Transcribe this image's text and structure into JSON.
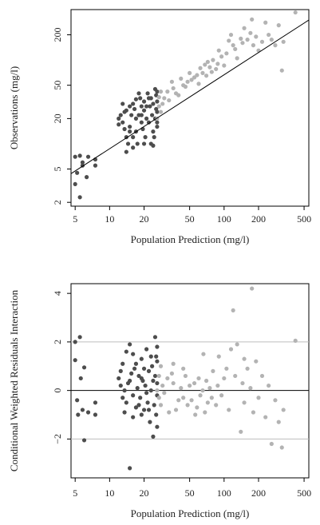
{
  "colors": {
    "dark_points": "#4d4d4d",
    "light_points": "#b3b3b3",
    "reference_line": "#000000",
    "guide_line": "#bdbdbd"
  },
  "chart_data": [
    {
      "type": "scatter",
      "title": "",
      "xlabel": "Population Prediction (mg/l)",
      "ylabel": "Observations (mg/l)",
      "x_scale": "log",
      "y_scale": "log",
      "xlim": [
        4.6,
        550
      ],
      "ylim": [
        1.8,
        400
      ],
      "x_ticks": [
        5,
        10,
        20,
        50,
        100,
        200,
        500
      ],
      "x_tick_labels": [
        "5",
        "10",
        "20",
        "50",
        "100",
        "200",
        "500"
      ],
      "y_ticks": [
        2,
        5,
        20,
        50,
        200
      ],
      "y_tick_labels": [
        "2",
        "5",
        "20",
        "50",
        "200"
      ],
      "grid": false,
      "legend": "none",
      "reference_line": {
        "type": "identity",
        "from": [
          4.6,
          4.4
        ],
        "to": [
          550,
          300
        ]
      },
      "series": [
        {
          "color": "#4d4d4d",
          "points": [
            [
              5,
              3.3
            ],
            [
              5,
              7
            ],
            [
              5.2,
              4.5
            ],
            [
              5.5,
              2.3
            ],
            [
              5.5,
              7.2
            ],
            [
              5.8,
              6
            ],
            [
              5.8,
              5.5
            ],
            [
              6.3,
              4
            ],
            [
              6.5,
              7
            ],
            [
              7.5,
              6.5
            ],
            [
              7.5,
              5.5
            ],
            [
              12,
              20
            ],
            [
              12.5,
              22
            ],
            [
              13,
              30
            ],
            [
              13,
              18
            ],
            [
              13.5,
              15
            ],
            [
              14,
              12
            ],
            [
              14,
              8
            ],
            [
              14,
              25
            ],
            [
              14.5,
              10
            ],
            [
              15,
              28
            ],
            [
              15,
              16
            ],
            [
              15.5,
              22
            ],
            [
              16,
              9
            ],
            [
              16,
              12
            ],
            [
              16,
              30
            ],
            [
              16.5,
              26
            ],
            [
              17,
              20
            ],
            [
              17,
              14
            ],
            [
              17.5,
              10
            ],
            [
              18,
              22
            ],
            [
              18.5,
              35
            ],
            [
              19,
              28
            ],
            [
              19,
              18
            ],
            [
              19.5,
              15
            ],
            [
              20,
              25
            ],
            [
              20,
              32
            ],
            [
              20.5,
              12
            ],
            [
              21,
              20
            ],
            [
              21.5,
              40
            ],
            [
              22,
              18
            ],
            [
              22.5,
              28
            ],
            [
              23,
              10
            ],
            [
              23,
              35
            ],
            [
              23.5,
              22
            ],
            [
              24,
              14
            ],
            [
              24,
              30
            ],
            [
              24.5,
              12
            ],
            [
              25,
              20
            ],
            [
              25,
              45
            ],
            [
              25.5,
              26
            ],
            [
              25.5,
              38
            ],
            [
              26,
              16
            ],
            [
              26,
              32
            ],
            [
              26,
              24
            ],
            [
              26,
              42
            ],
            [
              26,
              18
            ],
            [
              18,
              40
            ],
            [
              20,
              10
            ],
            [
              21,
              28
            ],
            [
              22,
              35
            ],
            [
              24,
              9.5
            ],
            [
              13.5,
              24
            ],
            [
              15,
              14
            ],
            [
              17,
              34
            ],
            [
              19,
              22
            ],
            [
              12,
              17
            ]
          ]
        },
        {
          "color": "#b3b3b3",
          "points": [
            [
              26,
              20
            ],
            [
              27,
              28
            ],
            [
              27,
              36
            ],
            [
              28,
              24
            ],
            [
              28,
              42
            ],
            [
              29,
              30
            ],
            [
              30,
              35
            ],
            [
              32,
              42
            ],
            [
              33,
              33
            ],
            [
              35,
              55
            ],
            [
              36,
              46
            ],
            [
              38,
              40
            ],
            [
              40,
              38
            ],
            [
              42,
              60
            ],
            [
              44,
              50
            ],
            [
              46,
              48
            ],
            [
              48,
              55
            ],
            [
              50,
              70
            ],
            [
              52,
              58
            ],
            [
              55,
              62
            ],
            [
              58,
              66
            ],
            [
              60,
              52
            ],
            [
              62,
              80
            ],
            [
              65,
              70
            ],
            [
              68,
              88
            ],
            [
              70,
              65
            ],
            [
              72,
              95
            ],
            [
              75,
              82
            ],
            [
              78,
              72
            ],
            [
              80,
              100
            ],
            [
              85,
              78
            ],
            [
              88,
              90
            ],
            [
              90,
              130
            ],
            [
              95,
              110
            ],
            [
              100,
              86
            ],
            [
              105,
              120
            ],
            [
              110,
              170
            ],
            [
              115,
              200
            ],
            [
              120,
              150
            ],
            [
              125,
              135
            ],
            [
              130,
              105
            ],
            [
              140,
              180
            ],
            [
              145,
              160
            ],
            [
              150,
              240
            ],
            [
              160,
              175
            ],
            [
              170,
              210
            ],
            [
              175,
              305
            ],
            [
              180,
              150
            ],
            [
              190,
              190
            ],
            [
              200,
              130
            ],
            [
              215,
              165
            ],
            [
              230,
              280
            ],
            [
              245,
              200
            ],
            [
              260,
              175
            ],
            [
              280,
              150
            ],
            [
              300,
              260
            ],
            [
              320,
              75
            ],
            [
              330,
              165
            ],
            [
              420,
              370
            ]
          ]
        }
      ]
    },
    {
      "type": "scatter",
      "title": "",
      "xlabel": "Population Prediction (mg/l)",
      "ylabel": "Conditional Weighted Residuals Interaction",
      "x_scale": "log",
      "y_scale": "linear",
      "xlim": [
        4.6,
        550
      ],
      "ylim": [
        -3.6,
        4.4
      ],
      "x_ticks": [
        5,
        10,
        20,
        50,
        100,
        200,
        500
      ],
      "x_tick_labels": [
        "5",
        "10",
        "20",
        "50",
        "100",
        "200",
        "500"
      ],
      "y_ticks": [
        -2,
        0,
        2,
        4
      ],
      "y_tick_labels": [
        "−2",
        "0",
        "2",
        "4"
      ],
      "grid": false,
      "legend": "none",
      "horizontal_lines": [
        {
          "y": 0,
          "color": "#000000"
        },
        {
          "y": 2,
          "color": "#bdbdbd"
        },
        {
          "y": -2,
          "color": "#bdbdbd"
        }
      ],
      "series": [
        {
          "color": "#4d4d4d",
          "points": [
            [
              5,
              2.0
            ],
            [
              5,
              1.25
            ],
            [
              5.2,
              -0.4
            ],
            [
              5.3,
              -1.0
            ],
            [
              5.5,
              2.2
            ],
            [
              5.6,
              0.5
            ],
            [
              5.8,
              -0.8
            ],
            [
              6,
              0.95
            ],
            [
              6,
              -2.05
            ],
            [
              6.5,
              -0.9
            ],
            [
              7.5,
              -1.0
            ],
            [
              7.5,
              -0.5
            ],
            [
              12,
              0.5
            ],
            [
              12.5,
              0.2
            ],
            [
              13,
              1.1
            ],
            [
              13,
              -0.3
            ],
            [
              13.5,
              -0.9
            ],
            [
              14,
              -0.5
            ],
            [
              14.5,
              0.3
            ],
            [
              15,
              -3.2
            ],
            [
              15,
              1.9
            ],
            [
              15.5,
              0.7
            ],
            [
              16,
              -0.2
            ],
            [
              16,
              1.5
            ],
            [
              16.5,
              0.9
            ],
            [
              17,
              -0.7
            ],
            [
              17.5,
              0.1
            ],
            [
              18,
              0.6
            ],
            [
              18.5,
              -0.3
            ],
            [
              19,
              1.3
            ],
            [
              19,
              -1.0
            ],
            [
              19.5,
              0.4
            ],
            [
              20,
              -0.8
            ],
            [
              20.5,
              0.2
            ],
            [
              21,
              1.7
            ],
            [
              21.5,
              -0.5
            ],
            [
              22,
              0.8
            ],
            [
              22.5,
              -1.3
            ],
            [
              23,
              0.0
            ],
            [
              23.5,
              1.0
            ],
            [
              24,
              -1.9
            ],
            [
              24,
              0.4
            ],
            [
              24.5,
              -0.6
            ],
            [
              25,
              0.6
            ],
            [
              25,
              2.2
            ],
            [
              25.5,
              1.4
            ],
            [
              25.5,
              -1.0
            ],
            [
              26,
              0.3
            ],
            [
              26,
              1.2
            ],
            [
              26,
              -0.2
            ],
            [
              26,
              1.8
            ],
            [
              26,
              -1.5
            ],
            [
              14,
              1.6
            ],
            [
              18,
              -0.6
            ],
            [
              20,
              0.9
            ],
            [
              22,
              -0.8
            ],
            [
              23,
              1.4
            ],
            [
              12.5,
              0.8
            ],
            [
              16,
              -1.1
            ],
            [
              17,
              1.1
            ],
            [
              21,
              -0.1
            ],
            [
              19,
              0.5
            ],
            [
              13.5,
              0.0
            ],
            [
              15,
              0.4
            ]
          ]
        },
        {
          "color": "#b3b3b3",
          "points": [
            [
              26,
              0.0
            ],
            [
              27,
              0.6
            ],
            [
              27,
              -0.3
            ],
            [
              28,
              1.0
            ],
            [
              28,
              -0.6
            ],
            [
              29,
              0.2
            ],
            [
              30,
              -0.1
            ],
            [
              32,
              0.5
            ],
            [
              33,
              -0.9
            ],
            [
              35,
              0.7
            ],
            [
              36,
              0.3
            ],
            [
              38,
              -0.8
            ],
            [
              40,
              -0.4
            ],
            [
              42,
              0.1
            ],
            [
              44,
              -0.3
            ],
            [
              46,
              0.6
            ],
            [
              48,
              -0.6
            ],
            [
              50,
              0.2
            ],
            [
              52,
              -0.4
            ],
            [
              55,
              0.3
            ],
            [
              58,
              -0.7
            ],
            [
              60,
              0.5
            ],
            [
              62,
              -0.2
            ],
            [
              65,
              0.0
            ],
            [
              68,
              -0.9
            ],
            [
              70,
              0.4
            ],
            [
              72,
              -0.5
            ],
            [
              75,
              0.1
            ],
            [
              78,
              -0.3
            ],
            [
              80,
              0.8
            ],
            [
              85,
              -0.6
            ],
            [
              88,
              0.2
            ],
            [
              90,
              1.4
            ],
            [
              95,
              -0.2
            ],
            [
              100,
              0.5
            ],
            [
              105,
              0.9
            ],
            [
              110,
              -0.8
            ],
            [
              115,
              1.7
            ],
            [
              120,
              3.3
            ],
            [
              125,
              0.6
            ],
            [
              130,
              1.9
            ],
            [
              140,
              -1.7
            ],
            [
              145,
              0.3
            ],
            [
              150,
              -0.5
            ],
            [
              160,
              0.9
            ],
            [
              170,
              0.1
            ],
            [
              175,
              4.2
            ],
            [
              180,
              -0.9
            ],
            [
              190,
              1.2
            ],
            [
              200,
              -0.3
            ],
            [
              215,
              0.6
            ],
            [
              230,
              -1.1
            ],
            [
              245,
              0.2
            ],
            [
              260,
              -2.2
            ],
            [
              280,
              -0.4
            ],
            [
              300,
              -1.3
            ],
            [
              320,
              -2.35
            ],
            [
              330,
              -0.8
            ],
            [
              420,
              2.05
            ],
            [
              36,
              1.1
            ],
            [
              44,
              0.9
            ],
            [
              56,
              -1.0
            ],
            [
              66,
              1.5
            ],
            [
              150,
              1.3
            ]
          ]
        }
      ]
    }
  ]
}
